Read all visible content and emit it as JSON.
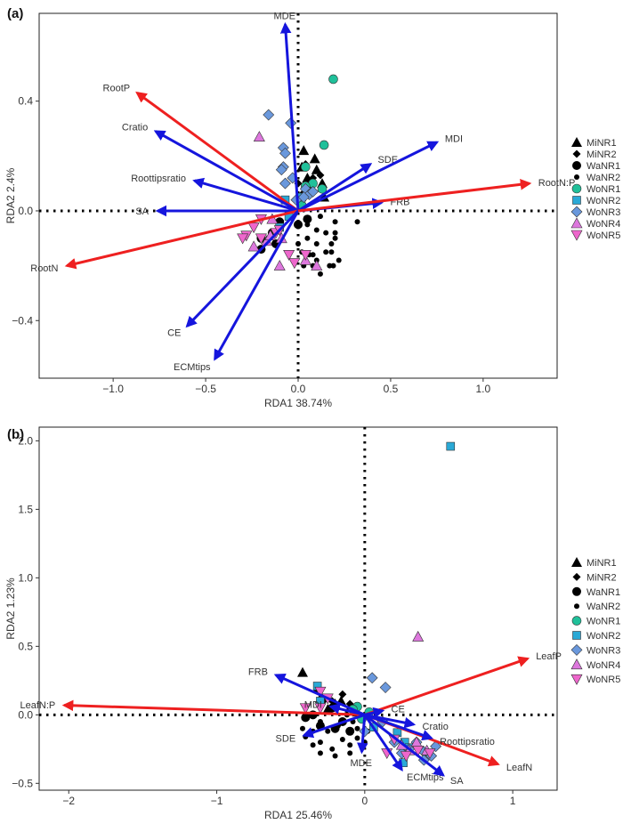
{
  "legend_labels": [
    "MiNR1",
    "MiNR2",
    "WaNR1",
    "WaNR2",
    "WoNR1",
    "WoNR2",
    "WoNR3",
    "WoNR4",
    "WoNR5"
  ],
  "colors": {
    "blue_arrow": "#1515dd",
    "red_arrow": "#ee2020",
    "black": "#000000",
    "teal": "#20c09a",
    "sky": "#2aa9d6",
    "steel": "#6a98dc",
    "pink": "#dd77dd",
    "pink_down": "#ee66cc"
  },
  "chart_data": [
    {
      "panel_label": "(a)",
      "type": "scatter",
      "title": "",
      "xlabel": "RDA1 38.74%",
      "ylabel": "RDA2 2.4%",
      "xlim": [
        -1.4,
        1.4
      ],
      "ylim": [
        -0.61,
        0.72
      ],
      "xticks": [
        -1.0,
        -0.5,
        0.0,
        0.5,
        1.0
      ],
      "xtick_labels": [
        "−1.0",
        "−0.5",
        "0.0",
        "0.5",
        "1.0"
      ],
      "yticks": [
        -0.4,
        0.0,
        0.4
      ],
      "ytick_labels": [
        "−0.4",
        "0.0",
        "0.4"
      ],
      "grid": false,
      "legend_position": "right",
      "arrows": [
        {
          "label": "MDE",
          "x": -0.07,
          "y": 0.68,
          "color": "blue"
        },
        {
          "label": "RootP",
          "x": -0.87,
          "y": 0.43,
          "color": "red"
        },
        {
          "label": "Cratio",
          "x": -0.77,
          "y": 0.29,
          "color": "blue"
        },
        {
          "label": "Roottipsratio",
          "x": -0.56,
          "y": 0.11,
          "color": "blue"
        },
        {
          "label": "SA",
          "x": -0.76,
          "y": 0.0,
          "color": "blue"
        },
        {
          "label": "RootN",
          "x": -1.25,
          "y": -0.2,
          "color": "red"
        },
        {
          "label": "CE",
          "x": -0.6,
          "y": -0.42,
          "color": "blue"
        },
        {
          "label": "ECMtips",
          "x": -0.45,
          "y": -0.54,
          "color": "blue"
        },
        {
          "label": "SDE",
          "x": 0.39,
          "y": 0.17,
          "color": "blue"
        },
        {
          "label": "MDI",
          "x": 0.75,
          "y": 0.25,
          "color": "blue"
        },
        {
          "label": "FRB",
          "x": 0.45,
          "y": 0.03,
          "color": "blue"
        },
        {
          "label": "RootN:P",
          "x": 1.25,
          "y": 0.1,
          "color": "red"
        }
      ],
      "series": [
        {
          "name": "MiNR1",
          "marker": "triangle-up",
          "color": "black",
          "points": [
            [
              0.03,
              0.22
            ],
            [
              0.09,
              0.19
            ],
            [
              0.13,
              0.1
            ],
            [
              0.05,
              0.12
            ],
            [
              0.14,
              0.05
            ],
            [
              0.02,
              0.16
            ],
            [
              0.1,
              0.15
            ]
          ]
        },
        {
          "name": "MiNR2",
          "marker": "diamond",
          "color": "black",
          "points": [
            [
              0.04,
              0.17
            ],
            [
              0.06,
              0.08
            ],
            [
              0.08,
              0.12
            ],
            [
              0.0,
              0.1
            ],
            [
              0.12,
              0.13
            ],
            [
              0.02,
              0.06
            ]
          ]
        },
        {
          "name": "WaNR1",
          "marker": "circle",
          "color": "black",
          "points": [
            [
              -0.1,
              -0.04
            ],
            [
              -0.14,
              -0.08
            ],
            [
              -0.2,
              -0.1
            ],
            [
              -0.12,
              -0.12
            ],
            [
              0.0,
              -0.05
            ],
            [
              0.05,
              -0.03
            ],
            [
              -0.2,
              -0.14
            ]
          ]
        },
        {
          "name": "WaNR2",
          "marker": "dot",
          "color": "black",
          "points": [
            [
              0.05,
              -0.1
            ],
            [
              0.1,
              -0.12
            ],
            [
              0.15,
              -0.15
            ],
            [
              0.08,
              -0.16
            ],
            [
              0.18,
              -0.12
            ],
            [
              0.15,
              -0.08
            ],
            [
              0.2,
              -0.04
            ],
            [
              0.12,
              -0.02
            ],
            [
              0.0,
              -0.12
            ],
            [
              0.03,
              -0.2
            ],
            [
              0.1,
              -0.18
            ],
            [
              0.17,
              -0.2
            ],
            [
              0.2,
              -0.1
            ],
            [
              0.05,
              -0.05
            ],
            [
              0.1,
              -0.07
            ],
            [
              0.18,
              -0.15
            ],
            [
              0.22,
              -0.18
            ],
            [
              0.32,
              -0.04
            ],
            [
              0.2,
              -0.08
            ],
            [
              0.08,
              -0.2
            ],
            [
              0.12,
              -0.23
            ],
            [
              0.02,
              -0.15
            ],
            [
              0.06,
              -0.16
            ],
            [
              0.19,
              -0.2
            ]
          ]
        },
        {
          "name": "WoNR1",
          "marker": "circle",
          "color": "teal",
          "points": [
            [
              0.19,
              0.48
            ],
            [
              0.14,
              0.24
            ],
            [
              0.04,
              0.16
            ],
            [
              0.08,
              0.1
            ],
            [
              0.13,
              0.08
            ],
            [
              0.04,
              0.09
            ],
            [
              0.02,
              0.02
            ]
          ]
        },
        {
          "name": "WoNR2",
          "marker": "square",
          "color": "sky",
          "points": [
            [
              -0.07,
              0.04
            ],
            [
              -0.1,
              -0.06
            ],
            [
              -0.05,
              -0.02
            ],
            [
              0.02,
              0.05
            ]
          ]
        },
        {
          "name": "WoNR3",
          "marker": "diamond",
          "color": "steel",
          "points": [
            [
              -0.16,
              0.35
            ],
            [
              -0.04,
              0.32
            ],
            [
              -0.08,
              0.23
            ],
            [
              -0.07,
              0.21
            ],
            [
              -0.08,
              0.16
            ],
            [
              -0.09,
              0.15
            ],
            [
              -0.07,
              0.1
            ],
            [
              -0.03,
              0.12
            ],
            [
              0.04,
              0.08
            ],
            [
              0.06,
              0.06
            ],
            [
              -0.01,
              0.04
            ],
            [
              0.08,
              0.07
            ],
            [
              0.03,
              0.05
            ]
          ]
        },
        {
          "name": "WoNR4",
          "marker": "triangle-up",
          "color": "pink",
          "points": [
            [
              -0.21,
              0.27
            ],
            [
              -0.14,
              -0.03
            ],
            [
              -0.17,
              -0.11
            ],
            [
              -0.09,
              -0.1
            ],
            [
              -0.24,
              -0.13
            ],
            [
              -0.1,
              -0.2
            ],
            [
              0.1,
              -0.2
            ],
            [
              -0.15,
              -0.09
            ],
            [
              0.04,
              -0.18
            ]
          ]
        },
        {
          "name": "WoNR5",
          "marker": "triangle-down",
          "color": "pink_down",
          "points": [
            [
              -0.28,
              -0.09
            ],
            [
              -0.2,
              -0.03
            ],
            [
              -0.12,
              -0.08
            ],
            [
              -0.05,
              -0.16
            ],
            [
              -0.2,
              -0.1
            ],
            [
              -0.1,
              -0.07
            ],
            [
              -0.02,
              -0.19
            ],
            [
              0.04,
              -0.16
            ],
            [
              -0.3,
              -0.1
            ],
            [
              -0.24,
              -0.06
            ]
          ]
        }
      ]
    },
    {
      "panel_label": "(b)",
      "type": "scatter",
      "title": "",
      "xlabel": "RDA1 25.46%",
      "ylabel": "RDA2 1.23%",
      "xlim": [
        -2.2,
        1.3
      ],
      "ylim": [
        -0.55,
        2.1
      ],
      "xticks": [
        -2,
        -1,
        0,
        1
      ],
      "xtick_labels": [
        "−2",
        "−1",
        "0",
        "1"
      ],
      "yticks": [
        -0.5,
        0.0,
        0.5,
        1.0,
        1.5,
        2.0
      ],
      "ytick_labels": [
        "−0.5",
        "0.0",
        "0.5",
        "1.0",
        "1.5",
        "2.0"
      ],
      "grid": false,
      "legend_position": "right",
      "arrows": [
        {
          "label": "LeafN:P",
          "x": -2.03,
          "y": 0.07,
          "color": "red"
        },
        {
          "label": "LeafP",
          "x": 1.1,
          "y": 0.41,
          "color": "red"
        },
        {
          "label": "LeafN",
          "x": 0.9,
          "y": -0.36,
          "color": "red"
        },
        {
          "label": "FRB",
          "x": -0.6,
          "y": 0.29,
          "color": "blue"
        },
        {
          "label": "MDI",
          "x": -0.23,
          "y": 0.06,
          "color": "blue"
        },
        {
          "label": "CE",
          "x": 0.12,
          "y": 0.03,
          "color": "blue"
        },
        {
          "label": "Cratio",
          "x": 0.33,
          "y": -0.07,
          "color": "blue"
        },
        {
          "label": "Roottipsratio",
          "x": 0.45,
          "y": -0.17,
          "color": "blue"
        },
        {
          "label": "SDE",
          "x": -0.41,
          "y": -0.15,
          "color": "blue"
        },
        {
          "label": "MDE",
          "x": -0.02,
          "y": -0.27,
          "color": "blue"
        },
        {
          "label": "ECMtips",
          "x": 0.25,
          "y": -0.4,
          "color": "blue"
        },
        {
          "label": "SA",
          "x": 0.53,
          "y": -0.44,
          "color": "blue"
        }
      ],
      "series": [
        {
          "name": "MiNR1",
          "marker": "triangle-up",
          "color": "black",
          "points": [
            [
              -0.42,
              0.31
            ],
            [
              -0.3,
              0.12
            ],
            [
              -0.2,
              0.08
            ],
            [
              -0.1,
              0.05
            ],
            [
              -0.16,
              0.1
            ],
            [
              -0.05,
              0.02
            ],
            [
              -0.25,
              0.04
            ]
          ]
        },
        {
          "name": "MiNR2",
          "marker": "diamond",
          "color": "black",
          "points": [
            [
              -0.32,
              0.18
            ],
            [
              -0.22,
              0.1
            ],
            [
              -0.1,
              0.08
            ],
            [
              -0.15,
              0.15
            ],
            [
              -0.28,
              0.1
            ],
            [
              -0.05,
              0.06
            ]
          ]
        },
        {
          "name": "WaNR1",
          "marker": "circle",
          "color": "black",
          "points": [
            [
              -0.35,
              0.0
            ],
            [
              -0.3,
              -0.08
            ],
            [
              -0.2,
              -0.1
            ],
            [
              -0.1,
              -0.12
            ],
            [
              -0.28,
              0.12
            ],
            [
              -0.15,
              -0.05
            ],
            [
              -0.4,
              -0.02
            ],
            [
              -0.22,
              0.05
            ]
          ]
        },
        {
          "name": "WaNR2",
          "marker": "dot",
          "color": "black",
          "points": [
            [
              -0.4,
              -0.16
            ],
            [
              -0.35,
              -0.22
            ],
            [
              -0.3,
              -0.2
            ],
            [
              -0.22,
              -0.25
            ],
            [
              -0.15,
              -0.18
            ],
            [
              -0.1,
              -0.22
            ],
            [
              -0.05,
              -0.17
            ],
            [
              0.0,
              -0.2
            ],
            [
              -0.25,
              -0.12
            ],
            [
              -0.18,
              -0.08
            ],
            [
              -0.12,
              0.0
            ],
            [
              -0.08,
              -0.05
            ],
            [
              -0.3,
              -0.05
            ],
            [
              -0.05,
              -0.1
            ],
            [
              0.02,
              -0.12
            ],
            [
              -0.35,
              -0.12
            ],
            [
              -0.2,
              -0.3
            ],
            [
              -0.1,
              -0.28
            ],
            [
              -0.42,
              -0.1
            ],
            [
              -0.3,
              -0.28
            ]
          ]
        },
        {
          "name": "WoNR1",
          "marker": "circle",
          "color": "teal",
          "points": [
            [
              -0.05,
              0.06
            ],
            [
              -0.02,
              -0.03
            ],
            [
              -0.08,
              0.04
            ],
            [
              0.03,
              0.02
            ]
          ]
        },
        {
          "name": "WoNR2",
          "marker": "square",
          "color": "sky",
          "points": [
            [
              0.58,
              1.96
            ],
            [
              -0.32,
              0.21
            ],
            [
              -0.3,
              0.1
            ],
            [
              0.06,
              -0.09
            ],
            [
              0.22,
              -0.13
            ],
            [
              0.27,
              -0.2
            ],
            [
              0.3,
              -0.24
            ],
            [
              0.26,
              -0.35
            ]
          ]
        },
        {
          "name": "WoNR3",
          "marker": "diamond",
          "color": "steel",
          "points": [
            [
              0.0,
              -0.12
            ],
            [
              0.05,
              0.27
            ],
            [
              0.14,
              0.2
            ],
            [
              0.12,
              -0.05
            ],
            [
              0.2,
              -0.2
            ],
            [
              0.3,
              -0.25
            ],
            [
              0.4,
              -0.27
            ],
            [
              0.48,
              -0.23
            ],
            [
              0.4,
              -0.33
            ],
            [
              0.35,
              -0.2
            ],
            [
              0.25,
              -0.28
            ],
            [
              0.45,
              -0.3
            ]
          ]
        },
        {
          "name": "WoNR4",
          "marker": "triangle-up",
          "color": "pink",
          "points": [
            [
              0.36,
              0.57
            ],
            [
              0.3,
              -0.26
            ],
            [
              0.25,
              -0.22
            ],
            [
              0.35,
              -0.2
            ],
            [
              0.42,
              -0.26
            ]
          ]
        },
        {
          "name": "WoNR5",
          "marker": "triangle-down",
          "color": "pink_down",
          "points": [
            [
              0.2,
              -0.18
            ],
            [
              0.28,
              -0.3
            ],
            [
              0.36,
              -0.26
            ],
            [
              0.44,
              -0.28
            ],
            [
              0.15,
              -0.28
            ],
            [
              -0.3,
              0.17
            ],
            [
              -0.25,
              0.12
            ],
            [
              -0.4,
              0.05
            ],
            [
              -0.3,
              0.05
            ]
          ]
        }
      ]
    }
  ]
}
